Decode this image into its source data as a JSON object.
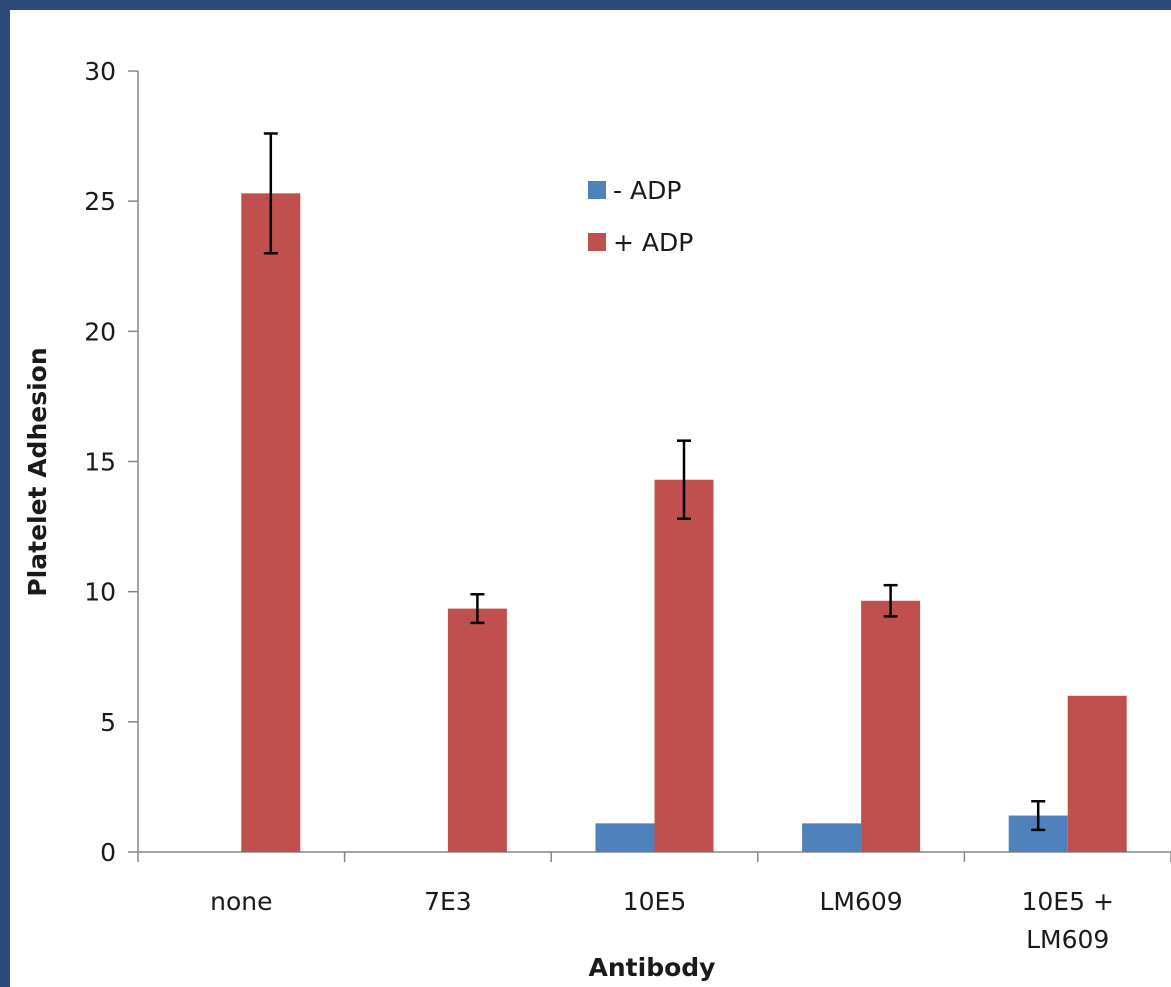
{
  "chart_data": {
    "type": "bar",
    "title": "",
    "xlabel": "Antibody",
    "ylabel": "Platelet Adhesion",
    "ylim": [
      0,
      30
    ],
    "yticks": [
      0,
      5,
      10,
      15,
      20,
      25,
      30
    ],
    "categories": [
      [
        "none"
      ],
      [
        "7E3"
      ],
      [
        "10E5"
      ],
      [
        "LM609"
      ],
      [
        "10E5 +",
        "LM609"
      ]
    ],
    "series": [
      {
        "name": "- ADP",
        "color": "#4f81bd",
        "values": [
          0,
          0,
          1.1,
          1.1,
          1.4
        ],
        "errors": [
          null,
          null,
          null,
          null,
          0.55
        ]
      },
      {
        "name": "+ ADP",
        "color": "#c0504d",
        "values": [
          25.3,
          9.35,
          14.3,
          9.65,
          6.0
        ],
        "errors": [
          2.3,
          0.55,
          1.5,
          0.6,
          null
        ]
      }
    ],
    "legend_position": "top-center",
    "grid": false
  }
}
